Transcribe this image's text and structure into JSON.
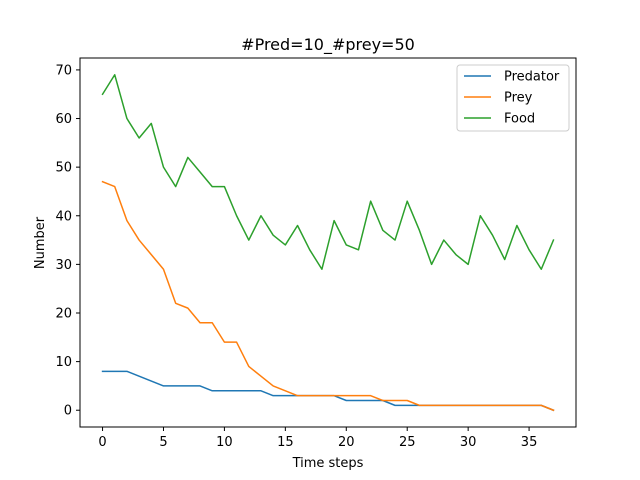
{
  "chart_data": {
    "type": "line",
    "title": "#Pred=10_#prey=50",
    "xlabel": "Time steps",
    "ylabel": "Number",
    "xlim": [
      -1.85,
      38.85
    ],
    "ylim": [
      -3.45,
      72.45
    ],
    "xticks": [
      0,
      5,
      10,
      15,
      20,
      25,
      30,
      35
    ],
    "yticks": [
      0,
      10,
      20,
      30,
      40,
      50,
      60,
      70
    ],
    "grid": false,
    "legend_position": "top-right",
    "x": [
      0,
      1,
      2,
      3,
      4,
      5,
      6,
      7,
      8,
      9,
      10,
      11,
      12,
      13,
      14,
      15,
      16,
      17,
      18,
      19,
      20,
      21,
      22,
      23,
      24,
      25,
      26,
      27,
      28,
      29,
      30,
      31,
      32,
      33,
      34,
      35,
      36,
      37
    ],
    "series": [
      {
        "name": "Predator",
        "color": "#1f77b4",
        "values": [
          8,
          8,
          8,
          7,
          6,
          5,
          5,
          5,
          5,
          4,
          4,
          4,
          4,
          4,
          3,
          3,
          3,
          3,
          3,
          3,
          2,
          2,
          2,
          2,
          1,
          1,
          1,
          1,
          1,
          1,
          1,
          1,
          1,
          1,
          1,
          1,
          1,
          0
        ]
      },
      {
        "name": "Prey",
        "color": "#ff7f0e",
        "values": [
          47,
          46,
          39,
          35,
          32,
          29,
          22,
          21,
          18,
          18,
          14,
          14,
          9,
          7,
          5,
          4,
          3,
          3,
          3,
          3,
          3,
          3,
          3,
          2,
          2,
          2,
          1,
          1,
          1,
          1,
          1,
          1,
          1,
          1,
          1,
          1,
          1,
          0
        ]
      },
      {
        "name": "Food",
        "color": "#2ca02c",
        "values": [
          65,
          69,
          60,
          56,
          59,
          50,
          46,
          52,
          49,
          46,
          46,
          40,
          35,
          40,
          36,
          34,
          38,
          33,
          29,
          39,
          34,
          33,
          43,
          37,
          35,
          43,
          37,
          30,
          35,
          32,
          30,
          40,
          36,
          31,
          38,
          33,
          29,
          35
        ]
      }
    ]
  }
}
